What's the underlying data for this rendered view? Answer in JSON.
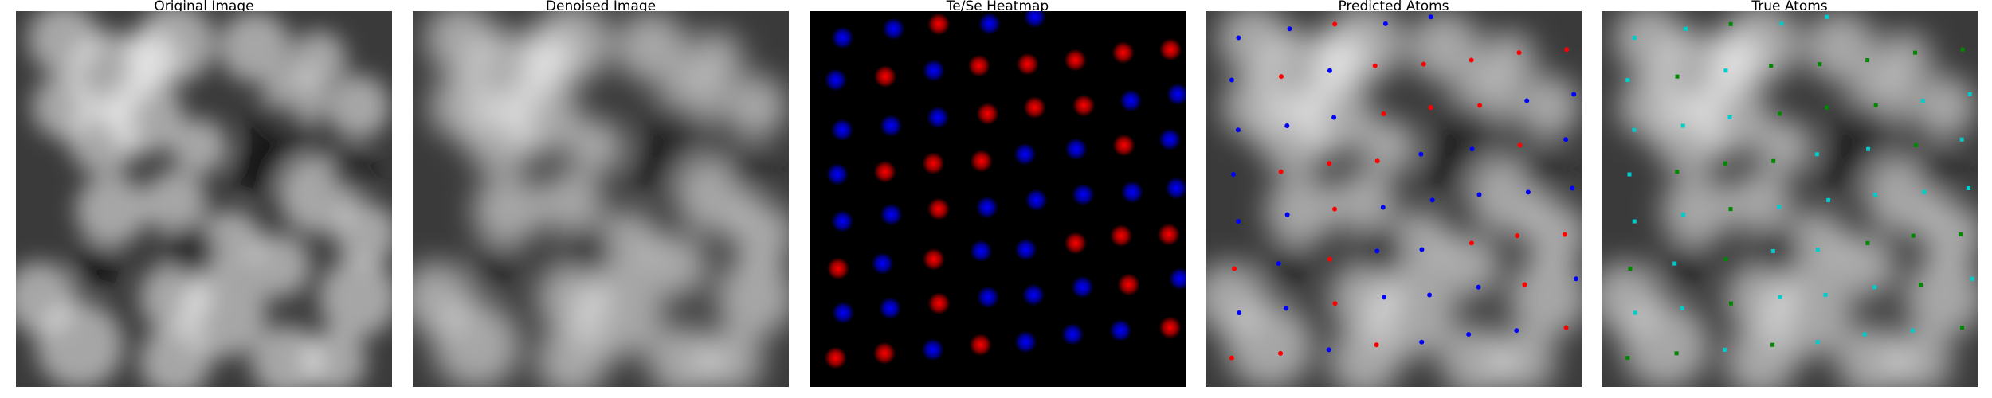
{
  "panels": [
    {
      "title": "Original Image",
      "kind": "stm-raw"
    },
    {
      "title": "Denoised Image",
      "kind": "stm-denoised"
    },
    {
      "title": "Te/Se Heatmap",
      "kind": "heatmap"
    },
    {
      "title": "Predicted Atoms",
      "kind": "predicted-overlay"
    },
    {
      "title": "True Atoms",
      "kind": "true-overlay"
    }
  ],
  "colors": {
    "te_marker": "#ff0000",
    "se_marker": "#0000ff",
    "true_type_a": "#00cccc",
    "true_type_b": "#008800",
    "heatmap_background": "#000000"
  }
}
